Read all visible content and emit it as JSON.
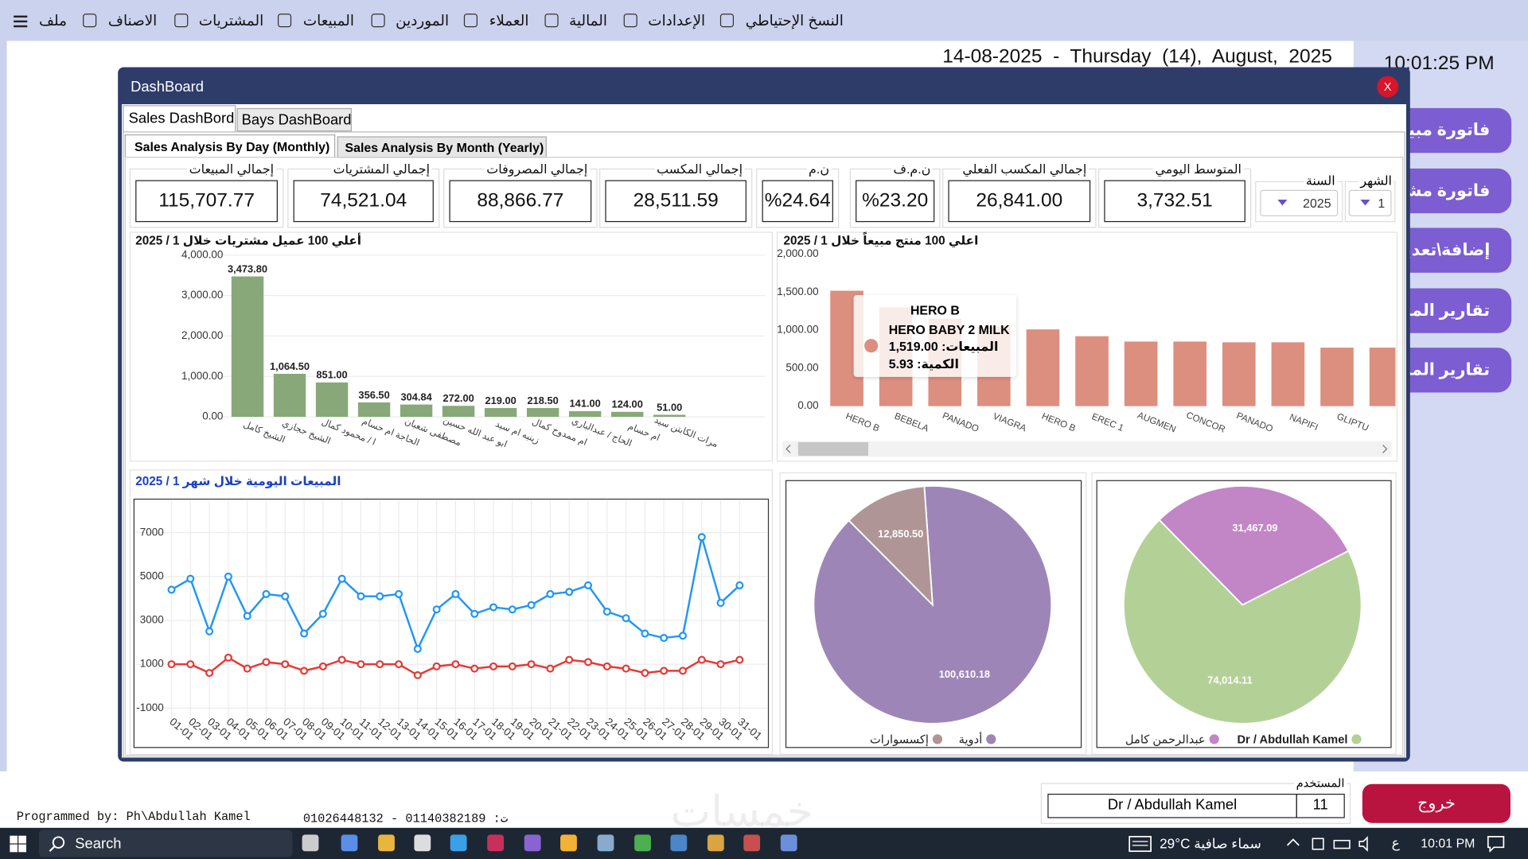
{
  "menu": [
    "ملف",
    "الاصناف",
    "المشتريات",
    "المبيعات",
    "الموردين",
    "العملاء",
    "المالية",
    "الإعدادات",
    "النسخ الإحتياطي"
  ],
  "date_line": "14-08-2025  -  Thursday  (14),  August,  2025",
  "clock": "10:01:25 PM",
  "side_buttons": [
    "فاتورة مبيع",
    "فاتورة مشتر",
    "إضافة\\تعديل",
    "تقارير المبيع",
    "تقارير المشتر"
  ],
  "dialog": {
    "title": "DashBoard",
    "close": "X",
    "tabs": [
      "Sales DashBord",
      "Bays DashBoard"
    ],
    "subtabs": [
      "Sales Analysis By Day (Monthly)",
      "Sales Analysis By Month (Yearly)"
    ]
  },
  "kpis": [
    {
      "label": "إجمالي المبيعات",
      "value": "115,707.77"
    },
    {
      "label": "إجمالي المشتريات",
      "value": "74,521.04"
    },
    {
      "label": "إجمالي المصروفات",
      "value": "88,866.77"
    },
    {
      "label": "إجمالي المكسب",
      "value": "28,511.59"
    },
    {
      "label": "ن.م",
      "value": "%24.64"
    },
    {
      "label": "ن.م.ف",
      "value": "%23.20"
    },
    {
      "label": "إجمالي المكسب الفعلي",
      "value": "26,841.00"
    },
    {
      "label": "المتوسط اليومي",
      "value": "3,732.51"
    }
  ],
  "filters": {
    "year_label": "السنة",
    "year": "2025",
    "month_label": "الشهر",
    "month": "1"
  },
  "chart_data": [
    {
      "type": "bar",
      "title": "أعلي 100 عميل مشتريات خلال 1 / 2025",
      "categories": [
        "الشيخ كامل",
        "الشيخ حجازي",
        "ا / محمود كمال",
        "الحاجة ام حسام",
        "مصطفى شعبان",
        "ابو عبد الله حسين",
        "زينبه ام سيد",
        "ام ممدوح كمال",
        "الحاج / عبدالباري",
        "ام حسام",
        "مرات الكابتن سيد"
      ],
      "values": [
        3473.8,
        1064.5,
        851.0,
        356.5,
        304.84,
        272.0,
        219.0,
        218.5,
        141.0,
        124.0,
        51.0
      ],
      "value_labels": [
        "3,473.80",
        "1,064.50",
        "851.00",
        "356.50",
        "304.84",
        "272.00",
        "219.00",
        "218.50",
        "141.00",
        "124.00",
        "51.00"
      ],
      "color": "#88a87a",
      "ylim": [
        0,
        4000
      ],
      "yticks": [
        {
          "value": 0,
          "label": "0.00"
        },
        {
          "value": 1000,
          "label": "1,000.00"
        },
        {
          "value": 2000,
          "label": "2,000.00"
        },
        {
          "value": 3000,
          "label": "3,000.00"
        },
        {
          "value": 4000,
          "label": "4,000.00"
        }
      ],
      "grid": true
    },
    {
      "type": "bar",
      "title": "اعلي 100 منتج مبيعاً خلال 1 / 2025",
      "categories": [
        "HERO B",
        "BEBELA",
        "PANADO",
        "VIAGRA",
        "HERO B",
        "EREC 1",
        "AUGMEN",
        "CONCOR",
        "PANADO",
        "NAPIFI",
        "GLIPTU",
        null
      ],
      "values": [
        1519,
        1300,
        1150,
        1050,
        1010,
        920,
        850,
        850,
        840,
        840,
        770,
        770
      ],
      "color": "#dc8f7f",
      "ylim": [
        0,
        2000
      ],
      "yticks": [
        {
          "value": 0,
          "label": "0.00"
        },
        {
          "value": 500,
          "label": "500.00"
        },
        {
          "value": 1000,
          "label": "1,000.00"
        },
        {
          "value": 1500,
          "label": "1,500.00"
        },
        {
          "value": 2000,
          "label": "2,000.00"
        }
      ],
      "grid": false,
      "tooltip": {
        "title": "HERO B",
        "name": "HERO BABY 2 MILK",
        "lines": [
          "المبيعات: 1,519.00",
          "الكمية: 5.93"
        ]
      }
    },
    {
      "type": "line",
      "title": "المبيعات اليومية خلال شهر 1 / 2025",
      "categories": [
        "01-01",
        "02-01",
        "03-01",
        "04-01",
        "05-01",
        "06-01",
        "07-01",
        "08-01",
        "09-01",
        "10-01",
        "11-01",
        "12-01",
        "13-01",
        "14-01",
        "15-01",
        "16-01",
        "17-01",
        "18-01",
        "19-01",
        "20-01",
        "21-01",
        "22-01",
        "23-01",
        "24-01",
        "25-01",
        "26-01",
        "27-01",
        "28-01",
        "29-01",
        "30-01",
        "31-01"
      ],
      "series": [
        {
          "color": "#2196f3",
          "values": [
            4400,
            4900,
            2500,
            5000,
            3200,
            4200,
            4100,
            2400,
            3300,
            4900,
            4100,
            4100,
            4200,
            1700,
            3500,
            4200,
            3300,
            3600,
            3500,
            3700,
            4200,
            4300,
            4600,
            3400,
            3100,
            2400,
            2200,
            2300,
            6800,
            3800,
            4600
          ]
        },
        {
          "color": "#e53935",
          "values": [
            1000,
            1000,
            600,
            1300,
            800,
            1100,
            1000,
            700,
            900,
            1200,
            1000,
            1000,
            1000,
            500,
            900,
            1000,
            800,
            900,
            900,
            1000,
            800,
            1200,
            1100,
            900,
            800,
            600,
            700,
            700,
            1200,
            1000,
            1200
          ]
        }
      ],
      "ylim": [
        -1500,
        8200
      ],
      "yticks": [
        -1000,
        1000,
        3000,
        5000,
        7000
      ],
      "grid": true
    },
    {
      "type": "pie",
      "categories": [
        "أدوية",
        "إكسسوارات"
      ],
      "values": [
        100610.18,
        12850.5
      ],
      "value_labels": [
        "100,610.18",
        "12,850.50"
      ],
      "colors": [
        "#9d86b7",
        "#af9595"
      ]
    },
    {
      "type": "pie",
      "categories": [
        "Dr / Abdullah Kamel",
        "عبدالرحمن كامل"
      ],
      "values": [
        74014.11,
        31467.09
      ],
      "value_labels": [
        "74,014.11",
        "31,467.09"
      ],
      "colors": [
        "#b3d196",
        "#c285c6"
      ]
    }
  ],
  "footer": {
    "credit": "Programmed by: Ph\\Abdullah Kamel",
    "phones": "01026448132 - 01140382189 :ت",
    "user_label": "المستخدم",
    "user": "Dr / Abdullah Kamel",
    "user_id": "11",
    "exit": "خروج",
    "watermark": "خمسات"
  },
  "taskbar": {
    "search": "Search",
    "weather": "29°C سماء صافية",
    "lang": "ع",
    "time": "10:01 PM"
  }
}
